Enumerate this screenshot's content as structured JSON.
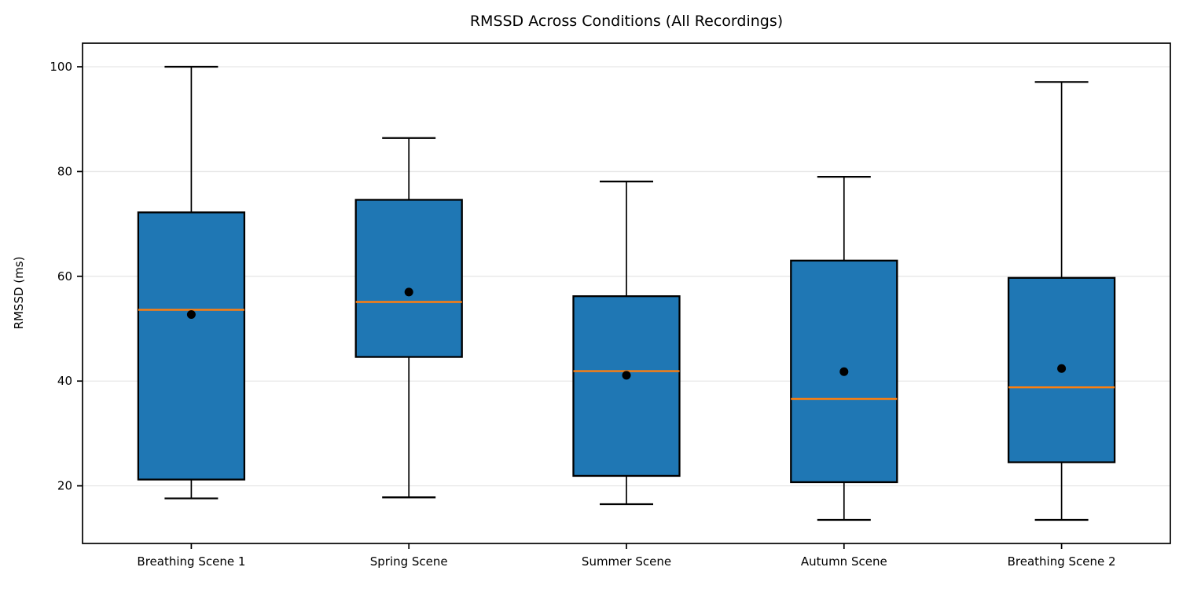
{
  "chart_data": {
    "type": "boxplot",
    "title": "RMSSD Across Conditions (All Recordings)",
    "ylabel": "RMSSD (ms)",
    "xlabel": "",
    "categories": [
      "Breathing Scene 1",
      "Spring Scene",
      "Summer Scene",
      "Autumn Scene",
      "Breathing Scene 2"
    ],
    "yticks": [
      20,
      40,
      60,
      80,
      100
    ],
    "ylim": [
      9,
      104.5
    ],
    "grid": "horizontal-only",
    "legend": "none",
    "series": [
      {
        "category": "Breathing Scene 1",
        "whisker_low": 17.6,
        "q1": 21.2,
        "median": 53.6,
        "q3": 72.2,
        "whisker_high": 100.0,
        "mean": 52.7
      },
      {
        "category": "Spring Scene",
        "whisker_low": 17.8,
        "q1": 44.6,
        "median": 55.1,
        "q3": 74.6,
        "whisker_high": 86.4,
        "mean": 57.0
      },
      {
        "category": "Summer Scene",
        "whisker_low": 16.5,
        "q1": 21.9,
        "median": 41.9,
        "q3": 56.2,
        "whisker_high": 78.1,
        "mean": 41.1
      },
      {
        "category": "Autumn Scene",
        "whisker_low": 13.5,
        "q1": 20.7,
        "median": 36.6,
        "q3": 63.0,
        "whisker_high": 79.0,
        "mean": 41.8
      },
      {
        "category": "Breathing Scene 2",
        "whisker_low": 13.5,
        "q1": 24.5,
        "median": 38.8,
        "q3": 59.7,
        "whisker_high": 97.1,
        "mean": 42.4
      }
    ],
    "colors": {
      "box_fill": "#1f77b4",
      "median_line": "#ff7f0e",
      "box_edge": "#000000",
      "whisker": "#000000",
      "mean_marker": "#000000",
      "grid": "#e7e7e7",
      "spine": "#000000",
      "background": "#ffffff",
      "text": "#000000"
    }
  }
}
